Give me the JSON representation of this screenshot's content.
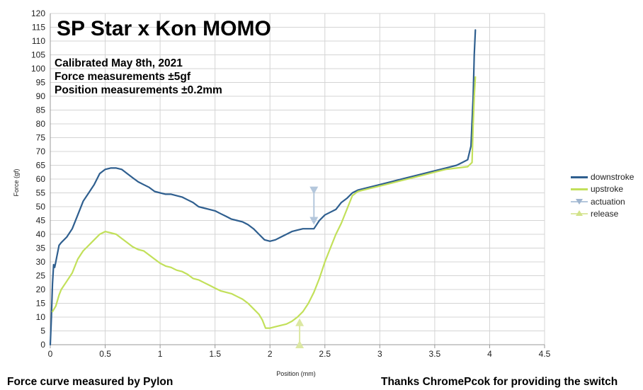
{
  "chart_data": {
    "type": "line",
    "title": "SP Star x Kon MOMO",
    "notes": [
      "Calibrated May 8th, 2021",
      "Force measurements ±5gf",
      "Position measurements ±0.2mm"
    ],
    "xlabel": "Position (mm)",
    "ylabel": "Force (gf)",
    "xlim": [
      0,
      4.5
    ],
    "ylim": [
      0,
      120
    ],
    "xticks": [
      "0",
      "0.5",
      "1",
      "1.5",
      "2",
      "2.5",
      "3",
      "3.5",
      "4",
      "4.5"
    ],
    "yticks": [
      "0",
      "5",
      "10",
      "15",
      "20",
      "25",
      "30",
      "35",
      "40",
      "45",
      "50",
      "55",
      "60",
      "65",
      "70",
      "75",
      "80",
      "85",
      "90",
      "95",
      "100",
      "105",
      "110",
      "115",
      "120"
    ],
    "grid": true,
    "legend_position": "right",
    "series": [
      {
        "name": "downstroke",
        "color": "#2f5f8f",
        "points": [
          [
            0.0,
            0
          ],
          [
            0.01,
            10
          ],
          [
            0.02,
            22
          ],
          [
            0.03,
            29
          ],
          [
            0.04,
            28
          ],
          [
            0.05,
            30
          ],
          [
            0.06,
            32
          ],
          [
            0.08,
            36
          ],
          [
            0.1,
            37
          ],
          [
            0.15,
            39
          ],
          [
            0.2,
            42
          ],
          [
            0.25,
            47
          ],
          [
            0.3,
            52
          ],
          [
            0.35,
            55
          ],
          [
            0.4,
            58
          ],
          [
            0.45,
            62
          ],
          [
            0.5,
            63.5
          ],
          [
            0.55,
            64
          ],
          [
            0.6,
            64
          ],
          [
            0.65,
            63.5
          ],
          [
            0.7,
            62
          ],
          [
            0.75,
            60.5
          ],
          [
            0.8,
            59
          ],
          [
            0.85,
            58
          ],
          [
            0.9,
            57
          ],
          [
            0.95,
            55.5
          ],
          [
            1.0,
            55
          ],
          [
            1.05,
            54.5
          ],
          [
            1.1,
            54.5
          ],
          [
            1.15,
            54
          ],
          [
            1.2,
            53.5
          ],
          [
            1.25,
            52.5
          ],
          [
            1.3,
            51.5
          ],
          [
            1.35,
            50
          ],
          [
            1.4,
            49.5
          ],
          [
            1.45,
            49
          ],
          [
            1.5,
            48.5
          ],
          [
            1.55,
            47.5
          ],
          [
            1.6,
            46.5
          ],
          [
            1.65,
            45.5
          ],
          [
            1.7,
            45
          ],
          [
            1.75,
            44.5
          ],
          [
            1.8,
            43.5
          ],
          [
            1.85,
            42
          ],
          [
            1.9,
            40
          ],
          [
            1.95,
            38
          ],
          [
            2.0,
            37.5
          ],
          [
            2.05,
            38
          ],
          [
            2.1,
            39
          ],
          [
            2.15,
            40
          ],
          [
            2.2,
            41
          ],
          [
            2.25,
            41.5
          ],
          [
            2.3,
            42
          ],
          [
            2.35,
            42
          ],
          [
            2.4,
            42
          ],
          [
            2.45,
            45
          ],
          [
            2.5,
            47
          ],
          [
            2.55,
            48
          ],
          [
            2.6,
            49
          ],
          [
            2.65,
            51.5
          ],
          [
            2.7,
            53
          ],
          [
            2.75,
            55
          ],
          [
            2.8,
            56
          ],
          [
            2.9,
            57
          ],
          [
            3.0,
            58
          ],
          [
            3.1,
            59
          ],
          [
            3.2,
            60
          ],
          [
            3.3,
            61
          ],
          [
            3.4,
            62
          ],
          [
            3.5,
            63
          ],
          [
            3.6,
            64
          ],
          [
            3.7,
            65
          ],
          [
            3.75,
            66
          ],
          [
            3.8,
            67
          ],
          [
            3.83,
            72
          ],
          [
            3.85,
            90
          ],
          [
            3.86,
            105
          ],
          [
            3.87,
            114
          ]
        ]
      },
      {
        "name": "upstroke",
        "color": "#c2e05a",
        "points": [
          [
            0.02,
            12
          ],
          [
            0.05,
            14
          ],
          [
            0.08,
            18
          ],
          [
            0.1,
            20
          ],
          [
            0.15,
            23
          ],
          [
            0.2,
            26
          ],
          [
            0.25,
            31
          ],
          [
            0.3,
            34
          ],
          [
            0.35,
            36
          ],
          [
            0.4,
            38
          ],
          [
            0.45,
            40
          ],
          [
            0.5,
            41
          ],
          [
            0.55,
            40.5
          ],
          [
            0.6,
            40
          ],
          [
            0.65,
            38.5
          ],
          [
            0.7,
            37
          ],
          [
            0.75,
            35.5
          ],
          [
            0.8,
            34.5
          ],
          [
            0.85,
            34
          ],
          [
            0.9,
            32.5
          ],
          [
            0.95,
            31
          ],
          [
            1.0,
            29.5
          ],
          [
            1.05,
            28.5
          ],
          [
            1.1,
            28
          ],
          [
            1.15,
            27
          ],
          [
            1.2,
            26.5
          ],
          [
            1.25,
            25.5
          ],
          [
            1.3,
            24
          ],
          [
            1.35,
            23.5
          ],
          [
            1.4,
            22.5
          ],
          [
            1.45,
            21.5
          ],
          [
            1.5,
            20.5
          ],
          [
            1.55,
            19.5
          ],
          [
            1.6,
            19
          ],
          [
            1.65,
            18.5
          ],
          [
            1.7,
            17.5
          ],
          [
            1.75,
            16.5
          ],
          [
            1.8,
            15
          ],
          [
            1.85,
            13
          ],
          [
            1.9,
            11
          ],
          [
            1.93,
            9
          ],
          [
            1.96,
            6
          ],
          [
            2.0,
            6
          ],
          [
            2.05,
            6.5
          ],
          [
            2.1,
            7
          ],
          [
            2.15,
            7.5
          ],
          [
            2.2,
            8.5
          ],
          [
            2.25,
            10
          ],
          [
            2.3,
            12
          ],
          [
            2.35,
            15
          ],
          [
            2.4,
            19
          ],
          [
            2.45,
            24
          ],
          [
            2.5,
            30
          ],
          [
            2.55,
            35
          ],
          [
            2.6,
            40
          ],
          [
            2.65,
            44
          ],
          [
            2.7,
            49
          ],
          [
            2.75,
            54
          ],
          [
            2.8,
            55.5
          ],
          [
            2.9,
            56.5
          ],
          [
            3.0,
            57.5
          ],
          [
            3.1,
            58.5
          ],
          [
            3.2,
            59.5
          ],
          [
            3.3,
            60.5
          ],
          [
            3.4,
            61.5
          ],
          [
            3.5,
            62.5
          ],
          [
            3.6,
            63.5
          ],
          [
            3.7,
            64
          ],
          [
            3.8,
            64.5
          ],
          [
            3.84,
            66
          ],
          [
            3.85,
            80
          ],
          [
            3.86,
            90
          ],
          [
            3.87,
            97
          ]
        ]
      },
      {
        "name": "actuation",
        "color": "#b4c7dc",
        "marker": "triangle-down",
        "points": [
          [
            2.4,
            56
          ],
          [
            2.4,
            45
          ]
        ]
      },
      {
        "name": "release",
        "color": "#dce8a2",
        "marker": "triangle-up",
        "points": [
          [
            2.27,
            0
          ],
          [
            2.27,
            8
          ]
        ]
      }
    ]
  },
  "footer": {
    "left": "Force curve measured by Pylon",
    "right": "Thanks ChromePcok for providing the switch"
  }
}
